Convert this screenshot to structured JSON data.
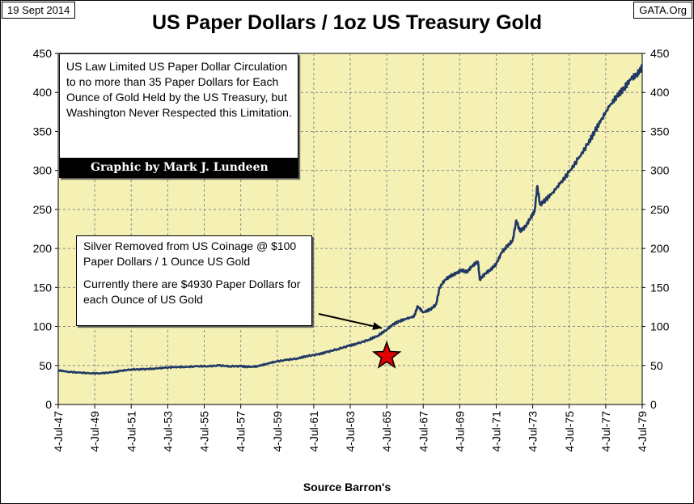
{
  "header": {
    "date": "19 Sept 2014",
    "source": "GATA.Org"
  },
  "chart_data": {
    "type": "line",
    "title": "US Paper Dollars / 1oz US Treasury Gold",
    "xlabel": "Source Barron's",
    "ylabel": "",
    "ylim": [
      0,
      450
    ],
    "yticks": [
      0,
      50,
      100,
      150,
      200,
      250,
      300,
      350,
      400,
      450
    ],
    "xlim": [
      1947.5,
      1979.5
    ],
    "xticks": [
      {
        "label": "4-Jul-47",
        "year": 1947.5
      },
      {
        "label": "4-Jul-49",
        "year": 1949.5
      },
      {
        "label": "4-Jul-51",
        "year": 1951.5
      },
      {
        "label": "4-Jul-53",
        "year": 1953.5
      },
      {
        "label": "4-Jul-55",
        "year": 1955.5
      },
      {
        "label": "4-Jul-57",
        "year": 1957.5
      },
      {
        "label": "4-Jul-59",
        "year": 1959.5
      },
      {
        "label": "4-Jul-61",
        "year": 1961.5
      },
      {
        "label": "4-Jul-63",
        "year": 1963.5
      },
      {
        "label": "4-Jul-65",
        "year": 1965.5
      },
      {
        "label": "4-Jul-67",
        "year": 1967.5
      },
      {
        "label": "4-Jul-69",
        "year": 1969.5
      },
      {
        "label": "4-Jul-71",
        "year": 1971.5
      },
      {
        "label": "4-Jul-73",
        "year": 1973.5
      },
      {
        "label": "4-Jul-75",
        "year": 1975.5
      },
      {
        "label": "4-Jul-77",
        "year": 1977.5
      },
      {
        "label": "4-Jul-79",
        "year": 1979.5
      }
    ],
    "series": [
      {
        "name": "US Paper Dollars / 1oz US Treasury Gold",
        "color": "#1f3864",
        "points": [
          [
            1947.5,
            44
          ],
          [
            1948.0,
            42
          ],
          [
            1948.6,
            41
          ],
          [
            1949.2,
            40
          ],
          [
            1949.8,
            40
          ],
          [
            1950.4,
            41
          ],
          [
            1950.9,
            43
          ],
          [
            1951.5,
            45
          ],
          [
            1952.1,
            45
          ],
          [
            1952.7,
            46
          ],
          [
            1953.3,
            47
          ],
          [
            1953.9,
            48
          ],
          [
            1954.5,
            48
          ],
          [
            1955.1,
            49
          ],
          [
            1955.7,
            49
          ],
          [
            1956.3,
            50
          ],
          [
            1956.9,
            49
          ],
          [
            1957.5,
            49
          ],
          [
            1958.0,
            48
          ],
          [
            1958.4,
            49
          ],
          [
            1958.9,
            52
          ],
          [
            1959.4,
            55
          ],
          [
            1960.0,
            57
          ],
          [
            1960.6,
            59
          ],
          [
            1961.1,
            62
          ],
          [
            1961.7,
            64
          ],
          [
            1962.2,
            67
          ],
          [
            1962.8,
            71
          ],
          [
            1963.4,
            75
          ],
          [
            1963.9,
            78
          ],
          [
            1964.5,
            83
          ],
          [
            1965.0,
            88
          ],
          [
            1965.5,
            96
          ],
          [
            1965.8,
            102
          ],
          [
            1966.2,
            107
          ],
          [
            1966.6,
            110
          ],
          [
            1967.0,
            113
          ],
          [
            1967.2,
            126
          ],
          [
            1967.5,
            118
          ],
          [
            1967.9,
            122
          ],
          [
            1968.2,
            128
          ],
          [
            1968.4,
            150
          ],
          [
            1968.7,
            160
          ],
          [
            1969.0,
            165
          ],
          [
            1969.3,
            168
          ],
          [
            1969.6,
            172
          ],
          [
            1969.9,
            170
          ],
          [
            1970.2,
            178
          ],
          [
            1970.5,
            183
          ],
          [
            1970.6,
            160
          ],
          [
            1970.9,
            168
          ],
          [
            1971.2,
            173
          ],
          [
            1971.5,
            180
          ],
          [
            1971.8,
            195
          ],
          [
            1972.1,
            203
          ],
          [
            1972.4,
            210
          ],
          [
            1972.6,
            236
          ],
          [
            1972.8,
            222
          ],
          [
            1973.1,
            228
          ],
          [
            1973.4,
            240
          ],
          [
            1973.6,
            247
          ],
          [
            1973.75,
            280
          ],
          [
            1973.9,
            256
          ],
          [
            1974.2,
            262
          ],
          [
            1974.6,
            272
          ],
          [
            1975.0,
            283
          ],
          [
            1975.5,
            298
          ],
          [
            1976.0,
            315
          ],
          [
            1976.5,
            333
          ],
          [
            1976.9,
            350
          ],
          [
            1977.3,
            367
          ],
          [
            1977.7,
            382
          ],
          [
            1978.1,
            395
          ],
          [
            1978.5,
            405
          ],
          [
            1978.9,
            418
          ],
          [
            1979.2,
            422
          ],
          [
            1979.5,
            433
          ]
        ]
      }
    ],
    "annotations": {
      "box1": {
        "text": "US Law Limited US Paper Dollar Circulation to no more than 35 Paper Dollars for Each Ounce of Gold Held by the US Treasury, but Washington Never Respected this Limitation.",
        "credit": "Graphic by Mark J. Lundeen"
      },
      "box2": {
        "line1": "Silver Removed from US Coinage @ $100 Paper Dollars / 1 Ounce US Gold",
        "line2": "Currently there are $4930 Paper Dollars for each Ounce of US Gold"
      },
      "star": {
        "year": 1965.5,
        "value": 62,
        "color": "#e00000"
      },
      "arrow_target": {
        "year": 1965.5,
        "value": 100
      }
    },
    "plot_bg": "#f5f0b4",
    "grid": true
  }
}
